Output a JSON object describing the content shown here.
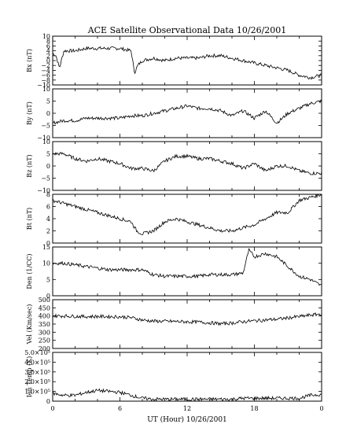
{
  "chart_data": {
    "type": "line",
    "title": "ACE Satellite Observational Data   10/26/2001",
    "xlabel": "UT (Hour)  10/26/2001",
    "x_ticks": [
      "0",
      "6",
      "12",
      "18",
      "0"
    ],
    "xlim": [
      0,
      24
    ],
    "panels": [
      {
        "name": "Bx (nT)",
        "ylabel": "Bx (nT)",
        "ylim": [
          -10,
          10
        ],
        "ytick_values": [
          -10,
          -8,
          -6,
          -4,
          -2,
          0,
          2,
          4,
          6,
          8,
          10
        ],
        "ytick_labels": [
          "−10",
          "−8",
          "−6",
          "−4",
          "−2",
          "0",
          "2",
          "4",
          "6",
          "8",
          "10"
        ],
        "x": [
          0,
          0.3,
          0.6,
          1.0,
          2.0,
          3.0,
          4.0,
          5.0,
          6.0,
          7.0,
          7.3,
          7.6,
          8.0,
          9.0,
          10.0,
          11.0,
          12.0,
          13.0,
          14.0,
          15.0,
          16.0,
          17.0,
          18.0,
          19.0,
          20.0,
          21.0,
          22.0,
          23.0,
          24.0
        ],
        "values": [
          3,
          2,
          -3,
          4,
          4,
          5,
          5,
          5,
          5,
          4,
          -5,
          -2,
          0,
          1,
          0,
          1,
          1,
          1,
          2,
          2,
          1,
          0,
          -1,
          -2,
          -3,
          -4,
          -6,
          -7,
          -6
        ]
      },
      {
        "name": "By (nT)",
        "ylabel": "By (nT)",
        "ylim": [
          -10,
          10
        ],
        "ytick_values": [
          -10,
          -5,
          0,
          5,
          10
        ],
        "ytick_labels": [
          "−10",
          "−5",
          "0",
          "5",
          "10"
        ],
        "x": [
          0,
          1,
          2,
          3,
          4,
          5,
          6,
          7,
          8,
          9,
          10,
          11,
          12,
          13,
          14,
          15,
          16,
          17,
          18,
          19,
          20,
          21,
          22,
          23,
          24
        ],
        "values": [
          -4,
          -3,
          -3,
          -2,
          -2,
          -2,
          -2,
          -1,
          -1,
          0,
          1,
          2,
          3,
          2,
          2,
          1,
          -1,
          1,
          -2,
          1,
          -4,
          0,
          2,
          4,
          5
        ]
      },
      {
        "name": "Bz (nT)",
        "ylabel": "Bz (nT)",
        "ylim": [
          -10,
          10
        ],
        "ytick_values": [
          -10,
          -5,
          0,
          5,
          10
        ],
        "ytick_labels": [
          "−10",
          "−5",
          "0",
          "5",
          "10"
        ],
        "x": [
          0,
          1,
          2,
          3,
          4,
          5,
          6,
          7,
          8,
          9,
          10,
          11,
          12,
          13,
          14,
          15,
          16,
          17,
          18,
          19,
          20,
          21,
          22,
          23,
          24
        ],
        "values": [
          5,
          5,
          3,
          2,
          3,
          2,
          1,
          -1,
          -1,
          -2,
          2,
          4,
          4,
          3,
          3,
          2,
          1,
          -1,
          1,
          -2,
          0,
          0,
          -2,
          -3,
          -3
        ]
      },
      {
        "name": "Bt (nT)",
        "ylabel": "Bt (nT)",
        "ylim": [
          0,
          8
        ],
        "ytick_values": [
          0,
          2,
          4,
          6,
          8
        ],
        "ytick_labels": [
          "0",
          "2",
          "4",
          "6",
          "8"
        ],
        "x": [
          0,
          1,
          2,
          3,
          4,
          5,
          6,
          7,
          7.5,
          8,
          9,
          10,
          11,
          12,
          13,
          14,
          15,
          16,
          17,
          18,
          19,
          20,
          21,
          22,
          23,
          24
        ],
        "values": [
          7,
          6.5,
          6,
          5.5,
          5,
          4.5,
          4,
          3.5,
          2,
          1.5,
          2,
          3.5,
          4,
          3.5,
          3,
          2.5,
          2,
          2,
          2.5,
          3,
          4,
          5,
          5,
          7,
          7.5,
          8
        ]
      },
      {
        "name": "Den (1/CC)",
        "ylabel": "Den (1/CC)",
        "ylim": [
          0,
          15
        ],
        "ytick_values": [
          0,
          5,
          10,
          15
        ],
        "ytick_labels": [
          "0",
          "5",
          "10",
          "15"
        ],
        "x": [
          0,
          1,
          2,
          3,
          4,
          5,
          6,
          7,
          8,
          9,
          10,
          11,
          12,
          13,
          14,
          15,
          16,
          17,
          17.5,
          18,
          19,
          20,
          21,
          22,
          23,
          24
        ],
        "values": [
          10,
          10,
          9.5,
          9,
          8.5,
          8,
          8,
          8,
          8,
          6.5,
          6,
          6,
          6,
          6,
          6.5,
          6.5,
          6.5,
          7,
          14,
          12,
          13,
          12,
          9,
          6,
          5,
          3
        ]
      },
      {
        "name": "Vel (Km/sec)",
        "ylabel": "Vel (Km/sec)",
        "ylim": [
          200,
          500
        ],
        "ytick_values": [
          200,
          250,
          300,
          350,
          400,
          450,
          500
        ],
        "ytick_labels": [
          "200",
          "250",
          "300",
          "350",
          "400",
          "450",
          "500"
        ],
        "x": [
          0,
          1,
          2,
          3,
          4,
          5,
          6,
          7,
          8,
          9,
          10,
          11,
          12,
          13,
          14,
          15,
          16,
          17,
          18,
          19,
          20,
          21,
          22,
          23,
          24
        ],
        "values": [
          400,
          400,
          398,
          396,
          397,
          396,
          395,
          390,
          375,
          368,
          367,
          366,
          364,
          362,
          358,
          352,
          356,
          365,
          370,
          375,
          380,
          388,
          396,
          405,
          412
        ]
      },
      {
        "name": "Ion Temp (K)",
        "ylabel": "Ion Temp (K)",
        "ylim": [
          0,
          500000
        ],
        "ytick_values": [
          0,
          100000,
          200000,
          300000,
          400000,
          500000
        ],
        "ytick_labels": [
          "0",
          "1.0×10⁵",
          "2.0×10⁵",
          "3.0×10⁵",
          "4.0×10⁵",
          "5.0×10⁵"
        ],
        "x": [
          0,
          1,
          2,
          3,
          4,
          5,
          6,
          7,
          8,
          9,
          10,
          11,
          12,
          13,
          14,
          15,
          16,
          17,
          18,
          19,
          20,
          21,
          22,
          23,
          24
        ],
        "values": [
          80000,
          60000,
          60000,
          90000,
          110000,
          100000,
          90000,
          60000,
          30000,
          20000,
          20000,
          20000,
          20000,
          20000,
          20000,
          20000,
          20000,
          30000,
          30000,
          30000,
          30000,
          30000,
          30000,
          60000,
          70000
        ]
      }
    ]
  }
}
